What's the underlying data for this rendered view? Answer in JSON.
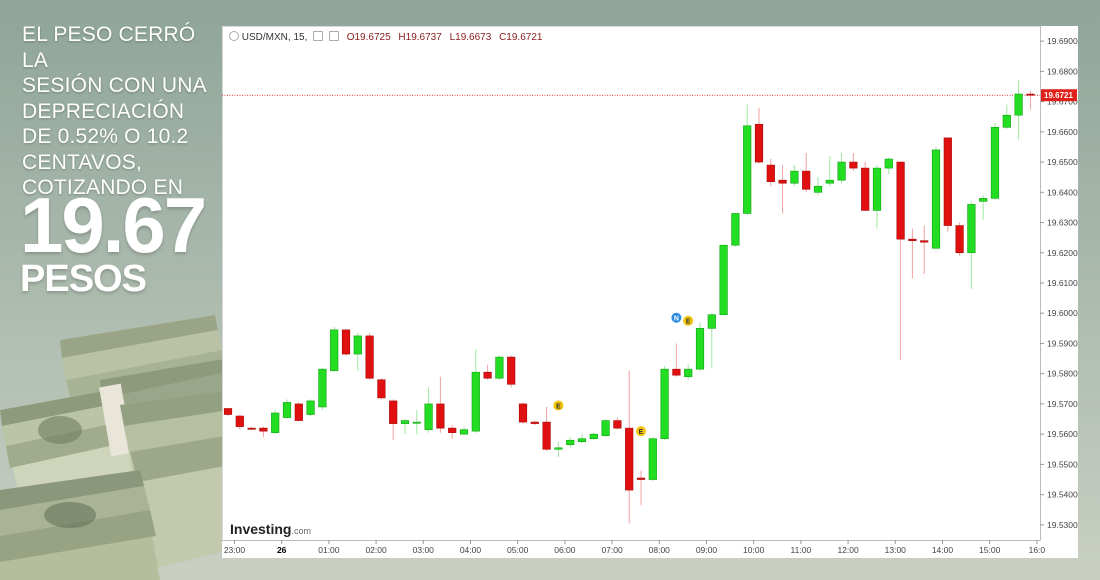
{
  "headline": {
    "lines": [
      "EL PESO CERRÓ LA",
      "SESIÓN CON UNA",
      "DEPRECIACIÓN",
      "DE 0.52% O 10.2",
      "CENTAVOS,",
      "COTIZANDO EN"
    ],
    "price": "19.67",
    "unit": "PESOS"
  },
  "chart_header": {
    "symbol": "USD/MXN, 15,",
    "open": "O19.6725",
    "high": "H19.6737",
    "low": "L19.6673",
    "close": "C19.6721"
  },
  "logo": {
    "name": "Investing",
    "suffix": ".com"
  },
  "chart_data": {
    "type": "candlestick",
    "symbol": "USD/MXN",
    "interval": "15",
    "ylim": [
      19.525,
      19.695
    ],
    "y_ticks": [
      "19.6900",
      "19.6800",
      "19.6700",
      "19.6600",
      "19.6500",
      "19.6400",
      "19.6300",
      "19.6200",
      "19.6100",
      "19.6000",
      "19.5900",
      "19.5800",
      "19.5700",
      "19.5600",
      "19.5500",
      "19.5400",
      "19.5300"
    ],
    "x_ticks": [
      "23:00",
      "26",
      "01:00",
      "02:00",
      "03:00",
      "04:00",
      "05:00",
      "06:00",
      "07:00",
      "08:00",
      "09:00",
      "10:00",
      "11:00",
      "12:00",
      "13:00",
      "14:00",
      "15:00",
      "16:0"
    ],
    "last_price": "19.6721",
    "colors": {
      "up": "#22dd22",
      "down": "#e01010",
      "last_line": "#e03030"
    },
    "candles": [
      {
        "o": 19.5685,
        "h": 19.5685,
        "l": 19.566,
        "c": 19.5665
      },
      {
        "o": 19.566,
        "h": 19.5665,
        "l": 19.5615,
        "c": 19.5625
      },
      {
        "o": 19.562,
        "h": 19.5625,
        "l": 19.5615,
        "c": 19.5618
      },
      {
        "o": 19.562,
        "h": 19.5625,
        "l": 19.559,
        "c": 19.561
      },
      {
        "o": 19.5605,
        "h": 19.568,
        "l": 19.56,
        "c": 19.567
      },
      {
        "o": 19.5655,
        "h": 19.5715,
        "l": 19.565,
        "c": 19.5705
      },
      {
        "o": 19.57,
        "h": 19.5705,
        "l": 19.5645,
        "c": 19.5645
      },
      {
        "o": 19.5665,
        "h": 19.5715,
        "l": 19.566,
        "c": 19.571
      },
      {
        "o": 19.569,
        "h": 19.582,
        "l": 19.568,
        "c": 19.5815
      },
      {
        "o": 19.581,
        "h": 19.5955,
        "l": 19.5805,
        "c": 19.5945
      },
      {
        "o": 19.5945,
        "h": 19.5945,
        "l": 19.586,
        "c": 19.5865
      },
      {
        "o": 19.5865,
        "h": 19.5935,
        "l": 19.581,
        "c": 19.5925
      },
      {
        "o": 19.5925,
        "h": 19.5935,
        "l": 19.578,
        "c": 19.5785
      },
      {
        "o": 19.578,
        "h": 19.5785,
        "l": 19.5715,
        "c": 19.572
      },
      {
        "o": 19.571,
        "h": 19.5715,
        "l": 19.558,
        "c": 19.5635
      },
      {
        "o": 19.5635,
        "h": 19.565,
        "l": 19.56,
        "c": 19.5645
      },
      {
        "o": 19.564,
        "h": 19.568,
        "l": 19.56,
        "c": 19.564
      },
      {
        "o": 19.5615,
        "h": 19.5755,
        "l": 19.5605,
        "c": 19.57
      },
      {
        "o": 19.57,
        "h": 19.579,
        "l": 19.5605,
        "c": 19.562
      },
      {
        "o": 19.562,
        "h": 19.563,
        "l": 19.5585,
        "c": 19.5605
      },
      {
        "o": 19.56,
        "h": 19.5625,
        "l": 19.56,
        "c": 19.5615
      },
      {
        "o": 19.561,
        "h": 19.588,
        "l": 19.5605,
        "c": 19.5805
      },
      {
        "o": 19.5805,
        "h": 19.583,
        "l": 19.578,
        "c": 19.5785
      },
      {
        "o": 19.5785,
        "h": 19.586,
        "l": 19.578,
        "c": 19.5855
      },
      {
        "o": 19.5855,
        "h": 19.586,
        "l": 19.5755,
        "c": 19.5765
      },
      {
        "o": 19.57,
        "h": 19.5705,
        "l": 19.5635,
        "c": 19.564
      },
      {
        "o": 19.564,
        "h": 19.5645,
        "l": 19.563,
        "c": 19.5635
      },
      {
        "o": 19.564,
        "h": 19.569,
        "l": 19.5545,
        "c": 19.555
      },
      {
        "o": 19.555,
        "h": 19.5575,
        "l": 19.5525,
        "c": 19.5555
      },
      {
        "o": 19.5565,
        "h": 19.559,
        "l": 19.5555,
        "c": 19.558
      },
      {
        "o": 19.5575,
        "h": 19.56,
        "l": 19.557,
        "c": 19.5585
      },
      {
        "o": 19.5585,
        "h": 19.5605,
        "l": 19.558,
        "c": 19.56
      },
      {
        "o": 19.5595,
        "h": 19.565,
        "l": 19.559,
        "c": 19.5645
      },
      {
        "o": 19.5645,
        "h": 19.5655,
        "l": 19.5615,
        "c": 19.562
      },
      {
        "o": 19.562,
        "h": 19.581,
        "l": 19.5305,
        "c": 19.5415
      },
      {
        "o": 19.5455,
        "h": 19.548,
        "l": 19.5365,
        "c": 19.545
      },
      {
        "o": 19.545,
        "h": 19.559,
        "l": 19.5445,
        "c": 19.5585
      },
      {
        "o": 19.5585,
        "h": 19.5825,
        "l": 19.558,
        "c": 19.5815
      },
      {
        "o": 19.5815,
        "h": 19.59,
        "l": 19.579,
        "c": 19.5795
      },
      {
        "o": 19.579,
        "h": 19.583,
        "l": 19.578,
        "c": 19.5815
      },
      {
        "o": 19.5815,
        "h": 19.597,
        "l": 19.581,
        "c": 19.595
      },
      {
        "o": 19.595,
        "h": 19.6,
        "l": 19.582,
        "c": 19.5995
      },
      {
        "o": 19.5995,
        "h": 19.6225,
        "l": 19.5995,
        "c": 19.6225
      },
      {
        "o": 19.6225,
        "h": 19.633,
        "l": 19.622,
        "c": 19.633
      },
      {
        "o": 19.633,
        "h": 19.669,
        "l": 19.6325,
        "c": 19.662
      },
      {
        "o": 19.6625,
        "h": 19.668,
        "l": 19.6495,
        "c": 19.65
      },
      {
        "o": 19.649,
        "h": 19.651,
        "l": 19.642,
        "c": 19.6435
      },
      {
        "o": 19.644,
        "h": 19.649,
        "l": 19.633,
        "c": 19.643
      },
      {
        "o": 19.643,
        "h": 19.649,
        "l": 19.642,
        "c": 19.647
      },
      {
        "o": 19.647,
        "h": 19.653,
        "l": 19.64,
        "c": 19.641
      },
      {
        "o": 19.64,
        "h": 19.645,
        "l": 19.639,
        "c": 19.642
      },
      {
        "o": 19.643,
        "h": 19.652,
        "l": 19.642,
        "c": 19.644
      },
      {
        "o": 19.644,
        "h": 19.653,
        "l": 19.643,
        "c": 19.65
      },
      {
        "o": 19.65,
        "h": 19.653,
        "l": 19.647,
        "c": 19.648
      },
      {
        "o": 19.648,
        "h": 19.65,
        "l": 19.634,
        "c": 19.634
      },
      {
        "o": 19.634,
        "h": 19.649,
        "l": 19.628,
        "c": 19.648
      },
      {
        "o": 19.648,
        "h": 19.6515,
        "l": 19.646,
        "c": 19.651
      },
      {
        "o": 19.65,
        "h": 19.65,
        "l": 19.5845,
        "c": 19.6245
      },
      {
        "o": 19.6245,
        "h": 19.628,
        "l": 19.6115,
        "c": 19.624
      },
      {
        "o": 19.624,
        "h": 19.629,
        "l": 19.613,
        "c": 19.6235
      },
      {
        "o": 19.6215,
        "h": 19.655,
        "l": 19.621,
        "c": 19.654
      },
      {
        "o": 19.658,
        "h": 19.658,
        "l": 19.627,
        "c": 19.629
      },
      {
        "o": 19.629,
        "h": 19.63,
        "l": 19.619,
        "c": 19.62
      },
      {
        "o": 19.62,
        "h": 19.637,
        "l": 19.608,
        "c": 19.636
      },
      {
        "o": 19.637,
        "h": 19.639,
        "l": 19.631,
        "c": 19.638
      },
      {
        "o": 19.638,
        "h": 19.663,
        "l": 19.6375,
        "c": 19.6615
      },
      {
        "o": 19.6615,
        "h": 19.669,
        "l": 19.661,
        "c": 19.6655
      },
      {
        "o": 19.6655,
        "h": 19.677,
        "l": 19.6575,
        "c": 19.6725
      },
      {
        "o": 19.6725,
        "h": 19.6737,
        "l": 19.6673,
        "c": 19.6721
      }
    ],
    "events": [
      {
        "label": "E",
        "index": 28,
        "price": 19.5695,
        "color": "#f2c40c"
      },
      {
        "label": "E",
        "index": 35,
        "price": 19.561,
        "color": "#f2c40c"
      },
      {
        "label": "N",
        "index": 38,
        "price": 19.5985,
        "color": "#2a8be0"
      },
      {
        "label": "E",
        "index": 39,
        "price": 19.5975,
        "color": "#f2c40c"
      }
    ]
  }
}
